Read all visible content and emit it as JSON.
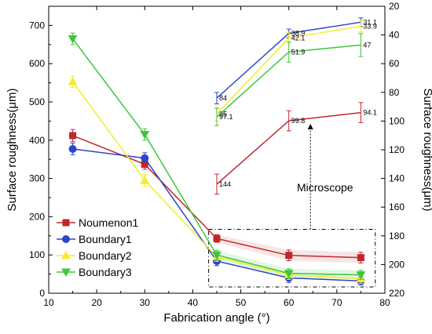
{
  "chart_data": {
    "type": "line",
    "xlabel": "Fabrication angle (°)",
    "ylabel_left": "Surface roughness(μm)",
    "ylabel_right": "Surface roughness(μm)",
    "xlim": [
      10,
      80
    ],
    "ylim_left": [
      0,
      750
    ],
    "ylim_right": [
      220,
      20
    ],
    "x_ticks": [
      10,
      20,
      30,
      40,
      50,
      60,
      70,
      80
    ],
    "y_left_ticks": [
      0,
      100,
      200,
      300,
      400,
      500,
      600,
      700
    ],
    "y_right_ticks": [
      20,
      40,
      60,
      80,
      100,
      120,
      140,
      160,
      180,
      200,
      220
    ],
    "grid": false,
    "legend_position": "lower-left",
    "colors": {
      "Noumenon1": "#c0272d",
      "Boundary1": "#2a45c8",
      "Boundary2": "#f3ec2a",
      "Boundary3": "#3ec63e"
    },
    "series": [
      {
        "name": "Noumenon1",
        "marker": "square",
        "x": [
          15,
          30,
          45,
          60,
          75
        ],
        "values": [
          412,
          337,
          143,
          99,
          93
        ],
        "errors": [
          16,
          13,
          10,
          14,
          14
        ]
      },
      {
        "name": "Boundary1",
        "marker": "circle",
        "x": [
          15,
          30,
          45,
          60,
          75
        ],
        "values": [
          377,
          353,
          84,
          40,
          32
        ],
        "errors": [
          15,
          14,
          12,
          12,
          10
        ]
      },
      {
        "name": "Boundary2",
        "marker": "triangle-up",
        "x": [
          15,
          30,
          45,
          60,
          75
        ],
        "values": [
          553,
          295,
          95,
          48,
          38
        ],
        "errors": [
          15,
          15,
          12,
          12,
          12
        ]
      },
      {
        "name": "Boundary3",
        "marker": "triangle-down",
        "x": [
          15,
          30,
          45,
          60,
          75
        ],
        "values": [
          665,
          415,
          100,
          52,
          48
        ],
        "errors": [
          15,
          15,
          12,
          12,
          12
        ]
      }
    ],
    "inset_series_right_axis": [
      {
        "name": "Noumenon1",
        "x": [
          45,
          60,
          75
        ],
        "values": [
          144,
          99.8,
          94.1
        ],
        "labels": [
          "144",
          "99.8",
          "94.1"
        ],
        "errors": [
          7,
          7,
          7
        ]
      },
      {
        "name": "Boundary1",
        "x": [
          45,
          60,
          75
        ],
        "values": [
          84,
          38.9,
          31.1
        ],
        "labels": [
          "84",
          "38.9",
          "31.1"
        ],
        "errors": [
          4,
          3,
          3
        ]
      },
      {
        "name": "Boundary2",
        "x": [
          45,
          60,
          75
        ],
        "values": [
          95,
          42.1,
          33.9
        ],
        "labels": [
          "95",
          "42.1",
          "33.9"
        ],
        "errors": [
          5,
          4,
          4
        ]
      },
      {
        "name": "Boundary3",
        "x": [
          45,
          60,
          75
        ],
        "values": [
          97.1,
          51.9,
          47
        ],
        "labels": [
          "97.1",
          "51.9",
          "47"
        ],
        "errors": [
          6,
          7,
          8
        ]
      }
    ],
    "annotation": "Microscope"
  }
}
